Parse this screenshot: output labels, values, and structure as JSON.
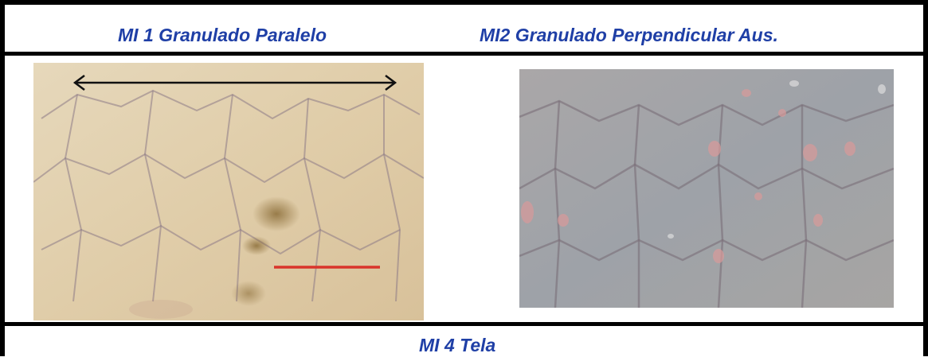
{
  "header": {
    "caption_left": "MI 1 Granulado Paralelo",
    "caption_right": "MI2 Granulado Perpendicular Aus."
  },
  "images": [
    {
      "name": "granulado-paralelo-photo",
      "tone": "#e3d2b1",
      "vein": "#8c7a86",
      "stain": "#6e5220",
      "arrow": "#111111",
      "scale_bar": "#d9342b"
    },
    {
      "name": "granulado-perpendicular-photo",
      "tone": "#a4a3a6",
      "vein": "#7a6e78",
      "spots": "#d99a9a"
    }
  ],
  "footer": {
    "caption": "MI 4 Tela"
  },
  "colors": {
    "caption": "#1f3fa6",
    "border": "#000000"
  }
}
